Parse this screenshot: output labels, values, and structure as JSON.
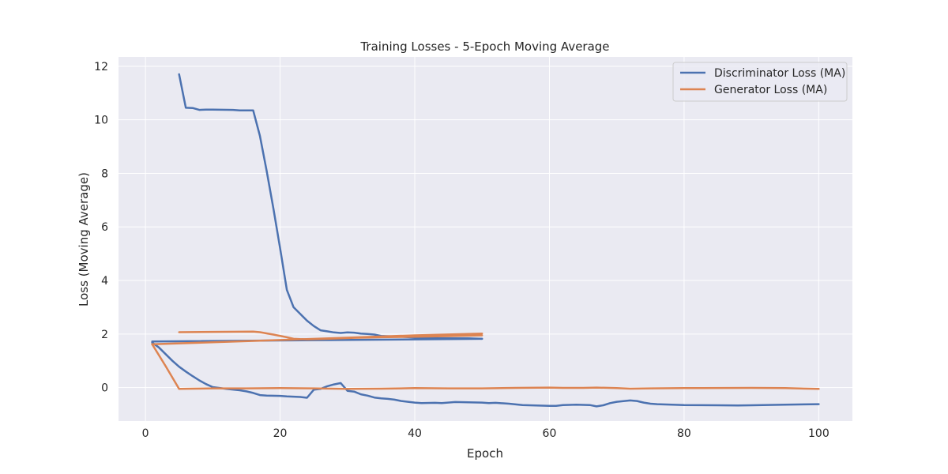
{
  "chart_data": {
    "type": "line",
    "title": "Training Losses - 5-Epoch Moving Average",
    "xlabel": "Epoch",
    "ylabel": "Loss (Moving Average)",
    "xlim": [
      -4,
      105
    ],
    "ylim": [
      -1.25,
      12.35
    ],
    "xticks": [
      0,
      20,
      40,
      60,
      80,
      100
    ],
    "yticks": [
      0,
      2,
      4,
      6,
      8,
      10,
      12
    ],
    "grid": true,
    "legend_position": "top-right",
    "colors": {
      "background": "#eaeaf2",
      "grid": "#ffffff",
      "discriminator": "#4c72b0",
      "generator": "#dd8452"
    },
    "series": [
      {
        "name": "Discriminator Loss (MA)",
        "color": "#4c72b0",
        "segments": [
          [
            [
              1,
              1.72
            ],
            [
              50,
              1.82
            ]
          ],
          [
            [
              5,
              11.7
            ],
            [
              6,
              10.45
            ],
            [
              7,
              10.44
            ],
            [
              8,
              10.37
            ],
            [
              9,
              10.38
            ],
            [
              10,
              10.38
            ],
            [
              13,
              10.37
            ],
            [
              14,
              10.35
            ],
            [
              16,
              10.35
            ],
            [
              17,
              9.4
            ],
            [
              18,
              8.1
            ],
            [
              19,
              6.7
            ],
            [
              20,
              5.2
            ],
            [
              21,
              3.65
            ],
            [
              22,
              3.0
            ],
            [
              23,
              2.75
            ],
            [
              24,
              2.5
            ],
            [
              25,
              2.3
            ],
            [
              26,
              2.14
            ],
            [
              27,
              2.1
            ],
            [
              28,
              2.06
            ],
            [
              29,
              2.04
            ],
            [
              30,
              2.06
            ],
            [
              31,
              2.05
            ],
            [
              32,
              2.02
            ],
            [
              33,
              2.0
            ],
            [
              34,
              1.98
            ],
            [
              35,
              1.93
            ],
            [
              38,
              1.9
            ],
            [
              40,
              1.87
            ],
            [
              43,
              1.84
            ],
            [
              45,
              1.84
            ],
            [
              48,
              1.84
            ],
            [
              50,
              1.82
            ]
          ],
          [
            [
              1,
              1.68
            ],
            [
              2,
              1.5
            ],
            [
              3,
              1.25
            ],
            [
              4,
              1.0
            ],
            [
              5,
              0.78
            ],
            [
              6,
              0.6
            ],
            [
              7,
              0.43
            ],
            [
              8,
              0.27
            ],
            [
              9,
              0.13
            ],
            [
              10,
              0.02
            ],
            [
              12,
              -0.05
            ],
            [
              14,
              -0.1
            ],
            [
              15,
              -0.14
            ],
            [
              16,
              -0.2
            ],
            [
              17,
              -0.28
            ],
            [
              18,
              -0.3
            ],
            [
              20,
              -0.31
            ],
            [
              21,
              -0.33
            ],
            [
              23,
              -0.35
            ],
            [
              24,
              -0.38
            ],
            [
              25,
              -0.08
            ],
            [
              26,
              -0.05
            ],
            [
              27,
              0.05
            ],
            [
              28,
              0.12
            ],
            [
              29,
              0.17
            ],
            [
              30,
              -0.12
            ],
            [
              31,
              -0.15
            ],
            [
              32,
              -0.25
            ],
            [
              33,
              -0.3
            ],
            [
              34,
              -0.37
            ],
            [
              35,
              -0.4
            ],
            [
              36,
              -0.42
            ],
            [
              37,
              -0.45
            ],
            [
              38,
              -0.5
            ],
            [
              39,
              -0.53
            ],
            [
              40,
              -0.56
            ],
            [
              41,
              -0.58
            ],
            [
              43,
              -0.57
            ],
            [
              44,
              -0.58
            ],
            [
              46,
              -0.54
            ],
            [
              48,
              -0.55
            ],
            [
              50,
              -0.56
            ],
            [
              51,
              -0.58
            ],
            [
              52,
              -0.57
            ],
            [
              54,
              -0.6
            ],
            [
              56,
              -0.65
            ],
            [
              58,
              -0.67
            ],
            [
              60,
              -0.68
            ],
            [
              61,
              -0.68
            ],
            [
              62,
              -0.65
            ],
            [
              64,
              -0.64
            ],
            [
              66,
              -0.65
            ],
            [
              67,
              -0.7
            ],
            [
              68,
              -0.66
            ],
            [
              69,
              -0.58
            ],
            [
              70,
              -0.53
            ],
            [
              72,
              -0.48
            ],
            [
              73,
              -0.5
            ],
            [
              74,
              -0.56
            ],
            [
              75,
              -0.6
            ],
            [
              76,
              -0.62
            ],
            [
              80,
              -0.65
            ],
            [
              85,
              -0.66
            ],
            [
              88,
              -0.67
            ],
            [
              90,
              -0.66
            ],
            [
              95,
              -0.64
            ],
            [
              100,
              -0.62
            ]
          ]
        ]
      },
      {
        "name": "Generator Loss (MA)",
        "color": "#dd8452",
        "segments": [
          [
            [
              1,
              1.62
            ],
            [
              17,
              1.75
            ],
            [
              40,
              1.95
            ],
            [
              50,
              2.02
            ]
          ],
          [
            [
              5,
              2.07
            ],
            [
              16,
              2.09
            ],
            [
              17,
              2.07
            ],
            [
              19,
              1.98
            ],
            [
              21,
              1.88
            ],
            [
              22,
              1.82
            ],
            [
              24,
              1.8
            ],
            [
              27,
              1.82
            ],
            [
              29,
              1.84
            ],
            [
              31,
              1.86
            ],
            [
              35,
              1.88
            ],
            [
              40,
              1.9
            ],
            [
              45,
              1.92
            ],
            [
              50,
              1.95
            ]
          ],
          [
            [
              1,
              1.62
            ],
            [
              3,
              0.8
            ],
            [
              5,
              -0.05
            ],
            [
              7,
              -0.04
            ],
            [
              10,
              -0.03
            ],
            [
              15,
              -0.03
            ],
            [
              20,
              -0.02
            ],
            [
              25,
              -0.03
            ],
            [
              30,
              -0.05
            ],
            [
              35,
              -0.04
            ],
            [
              40,
              -0.02
            ],
            [
              45,
              -0.03
            ],
            [
              50,
              -0.03
            ],
            [
              55,
              -0.01
            ],
            [
              60,
              0.0
            ],
            [
              62,
              -0.01
            ],
            [
              65,
              -0.01
            ],
            [
              67,
              0.0
            ],
            [
              70,
              -0.02
            ],
            [
              72,
              -0.04
            ],
            [
              75,
              -0.03
            ],
            [
              80,
              -0.02
            ],
            [
              90,
              -0.01
            ],
            [
              95,
              -0.02
            ],
            [
              100,
              -0.05
            ]
          ]
        ]
      }
    ]
  }
}
